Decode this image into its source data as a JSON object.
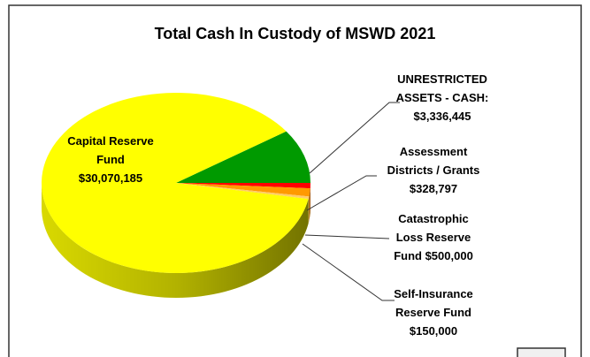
{
  "chart_data": {
    "type": "pie3d",
    "title": "Total Cash In Custody of MSWD 2021",
    "categories": [
      "Capital Reserve Fund",
      "UNRESTRICTED ASSETS - CASH:",
      "Assessment Districts / Grants",
      "Catastrophic Loss Reserve Fund",
      "Self-Insurance Reserve Fund"
    ],
    "values": [
      30070185,
      3336445,
      328797,
      500000,
      150000
    ],
    "value_labels": [
      "$30,070,185",
      "$3,336,445",
      "$328,797",
      "$500,000",
      "$150,000"
    ],
    "colors": [
      "#ffff00",
      "#009a00",
      "#ff0000",
      "#ff9a00",
      "#ffcc66"
    ]
  }
}
